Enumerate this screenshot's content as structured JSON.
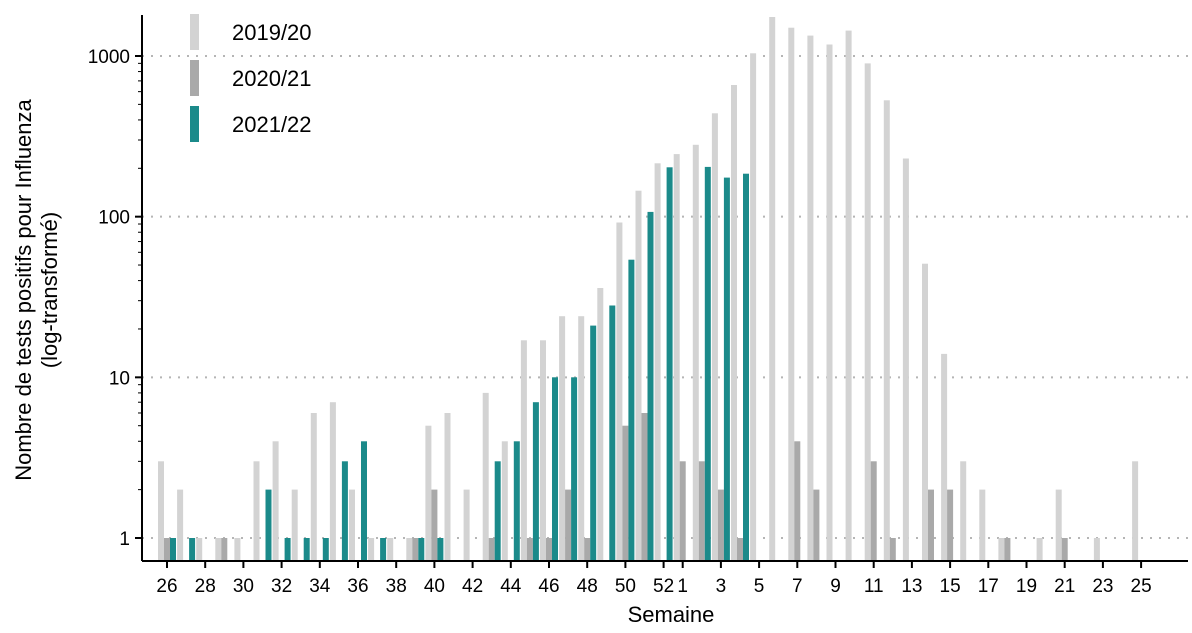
{
  "chart_data": {
    "type": "bar",
    "xlabel": "Semaine",
    "ylabel_lines": [
      "Nombre de tests positifs pour Influenza",
      "(log-transformé)"
    ],
    "yscale": "log",
    "ylim": [
      0.7,
      1800
    ],
    "yticks": [
      1,
      10,
      100,
      1000
    ],
    "ytick_labels": [
      "1",
      "10",
      "100",
      "1000"
    ],
    "grid": "horizontal dotted at major ticks",
    "legend_position": "top-left",
    "categories": [
      "26",
      "27",
      "28",
      "29",
      "30",
      "31",
      "32",
      "33",
      "34",
      "35",
      "36",
      "37",
      "38",
      "39",
      "40",
      "41",
      "42",
      "43",
      "44",
      "45",
      "46",
      "47",
      "48",
      "49",
      "50",
      "51",
      "52",
      "1",
      "2",
      "3",
      "4",
      "5",
      "6",
      "7",
      "8",
      "9",
      "10",
      "11",
      "12",
      "13",
      "14",
      "15",
      "16",
      "17",
      "18",
      "19",
      "20",
      "21",
      "22",
      "23",
      "24",
      "25"
    ],
    "xtick_labels": [
      "26",
      "28",
      "30",
      "32",
      "34",
      "36",
      "38",
      "40",
      "42",
      "44",
      "46",
      "48",
      "50",
      "52",
      "1",
      "3",
      "5",
      "7",
      "9",
      "11",
      "13",
      "15",
      "17",
      "19",
      "21",
      "23",
      "25"
    ],
    "series": [
      {
        "name": "2019/20",
        "color": "#d3d3d3",
        "values": [
          3,
          2,
          1,
          1,
          1,
          3,
          4,
          2,
          6,
          7,
          2,
          1,
          1,
          1,
          5,
          6,
          2,
          8,
          4,
          17,
          17,
          24,
          24,
          36,
          92,
          145,
          215,
          245,
          280,
          440,
          660,
          1040,
          1750,
          1500,
          1340,
          1180,
          1440,
          900,
          530,
          230,
          51,
          14,
          3,
          2,
          1,
          null,
          1,
          2,
          null,
          1,
          null,
          3
        ]
      },
      {
        "name": "2020/21",
        "color": "#a9a9a9",
        "values": [
          1,
          null,
          null,
          1,
          null,
          null,
          null,
          null,
          null,
          null,
          null,
          null,
          null,
          1,
          2,
          null,
          null,
          1,
          null,
          1,
          1,
          2,
          1,
          null,
          5,
          6,
          null,
          3,
          3,
          2,
          1,
          null,
          null,
          4,
          2,
          null,
          null,
          3,
          1,
          null,
          2,
          2,
          null,
          null,
          1,
          null,
          null,
          1,
          null,
          null,
          null,
          null
        ]
      },
      {
        "name": "2021/22",
        "color": "#1b8a8a",
        "values": [
          1,
          1,
          null,
          null,
          null,
          2,
          1,
          1,
          1,
          3,
          4,
          1,
          null,
          1,
          1,
          null,
          null,
          3,
          4,
          7,
          10,
          10,
          21,
          28,
          54,
          107,
          203,
          null,
          204,
          175,
          185,
          null,
          null,
          null,
          null,
          null,
          null,
          null,
          null,
          null,
          null,
          null,
          null,
          null,
          null,
          null,
          null,
          null,
          null,
          null,
          null,
          null
        ]
      }
    ]
  }
}
